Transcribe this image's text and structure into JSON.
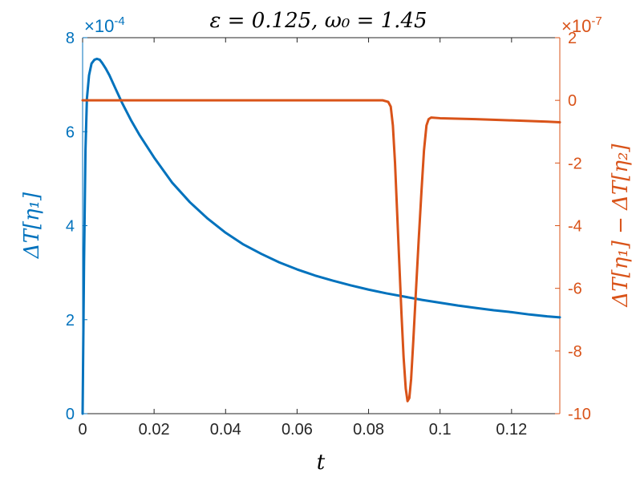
{
  "chart_data": {
    "type": "line",
    "title": "ε = 0.125, ω₀ = 1.45",
    "xlabel": "t",
    "ylabel_left": "ΔT[η₁]",
    "ylabel_right": "ΔT[η₁] − ΔT[η₂]",
    "xlim": [
      0,
      0.1335
    ],
    "ylim_left": [
      0,
      8
    ],
    "ylim_right": [
      -10,
      2
    ],
    "left_exponent": "×10",
    "left_exponent_power": "-4",
    "right_exponent": "×10",
    "right_exponent_power": "-7",
    "x_ticks": [
      0,
      0.02,
      0.04,
      0.06,
      0.08,
      0.1,
      0.12
    ],
    "x_tick_labels": [
      "0",
      "0.02",
      "0.04",
      "0.06",
      "0.08",
      "0.1",
      "0.12"
    ],
    "left_ticks": [
      0,
      2,
      4,
      6,
      8
    ],
    "left_tick_labels": [
      "0",
      "2",
      "4",
      "6",
      "8"
    ],
    "right_ticks": [
      2,
      0,
      -2,
      -4,
      -6,
      -8,
      -10
    ],
    "right_tick_labels": [
      "2",
      "0",
      "-2",
      "-4",
      "-6",
      "-8",
      "-10"
    ],
    "grid": false,
    "series": [
      {
        "axis": "left",
        "color": "#0072BD",
        "x": [
          0,
          0.0004,
          0.0008,
          0.0012,
          0.0018,
          0.0025,
          0.0033,
          0.004,
          0.0048,
          0.0055,
          0.0065,
          0.0075,
          0.009,
          0.011,
          0.0135,
          0.016,
          0.02,
          0.025,
          0.03,
          0.035,
          0.04,
          0.045,
          0.05,
          0.055,
          0.06,
          0.065,
          0.07,
          0.075,
          0.08,
          0.085,
          0.09,
          0.095,
          0.1,
          0.105,
          0.11,
          0.115,
          0.12,
          0.125,
          0.13,
          0.1335
        ],
        "y": [
          0,
          3.2,
          5.6,
          6.7,
          7.2,
          7.45,
          7.53,
          7.55,
          7.53,
          7.46,
          7.34,
          7.2,
          6.95,
          6.62,
          6.25,
          5.92,
          5.45,
          4.92,
          4.5,
          4.15,
          3.85,
          3.6,
          3.4,
          3.22,
          3.07,
          2.94,
          2.83,
          2.73,
          2.64,
          2.56,
          2.49,
          2.42,
          2.36,
          2.3,
          2.25,
          2.2,
          2.16,
          2.11,
          2.07,
          2.05
        ]
      },
      {
        "axis": "right",
        "color": "#D95319",
        "x": [
          0,
          0.02,
          0.04,
          0.06,
          0.08,
          0.084,
          0.0855,
          0.0862,
          0.0868,
          0.0874,
          0.088,
          0.0886,
          0.0892,
          0.0898,
          0.0904,
          0.0909,
          0.0914,
          0.0919,
          0.0925,
          0.0932,
          0.094,
          0.0948,
          0.0955,
          0.0962,
          0.0968,
          0.0975,
          0.1,
          0.11,
          0.12,
          0.13,
          0.1335
        ],
        "y": [
          0,
          0,
          0,
          0,
          0,
          0,
          -0.05,
          -0.2,
          -0.8,
          -2,
          -3.6,
          -5.2,
          -6.8,
          -8.2,
          -9.2,
          -9.6,
          -9.5,
          -8.9,
          -7.7,
          -6.2,
          -4.5,
          -2.9,
          -1.6,
          -0.8,
          -0.6,
          -0.55,
          -0.57,
          -0.6,
          -0.64,
          -0.68,
          -0.7
        ]
      }
    ]
  }
}
